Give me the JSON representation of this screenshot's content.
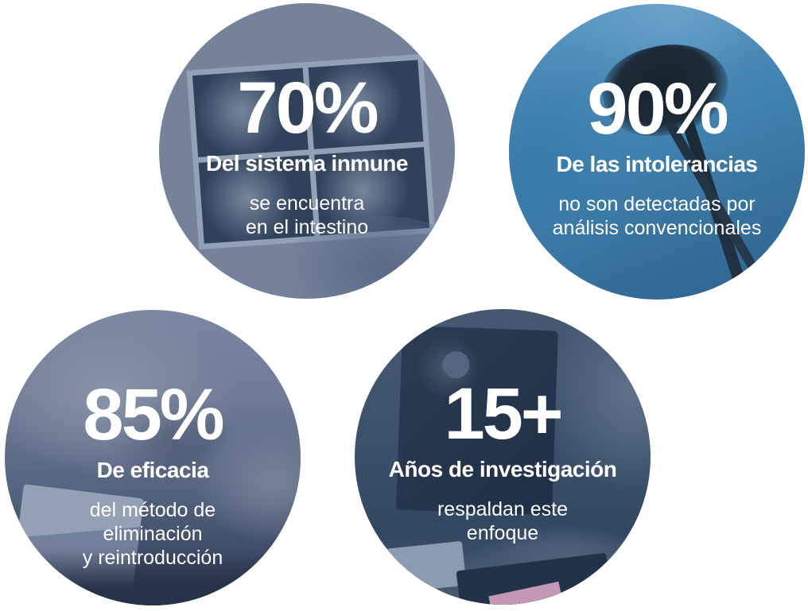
{
  "canvas": {
    "background": "#ffffff",
    "text_color": "#ffffff"
  },
  "stats": [
    {
      "value": "70%",
      "title": "Del sistema inmune",
      "description": "se encuentra\nen el intestino",
      "photo": "ultrasound-scans-in-hands",
      "tint": "#66758f"
    },
    {
      "value": "90%",
      "title": "De las intolerancias",
      "description": "no son detectadas por\nanálisis convencionales",
      "photo": "endoscope-blue-scrubs",
      "tint": "#4080ac"
    },
    {
      "value": "85%",
      "title": "De eficacia",
      "description": "del método de\neliminación\ny reintroducción",
      "photo": "hands-holding-test-kit",
      "tint": "#56657f"
    },
    {
      "value": "15+",
      "title": "Años de investigación",
      "description": "respaldan este\nenfoque",
      "photo": "research-desk-monitor",
      "tint": "#3e526c"
    }
  ]
}
